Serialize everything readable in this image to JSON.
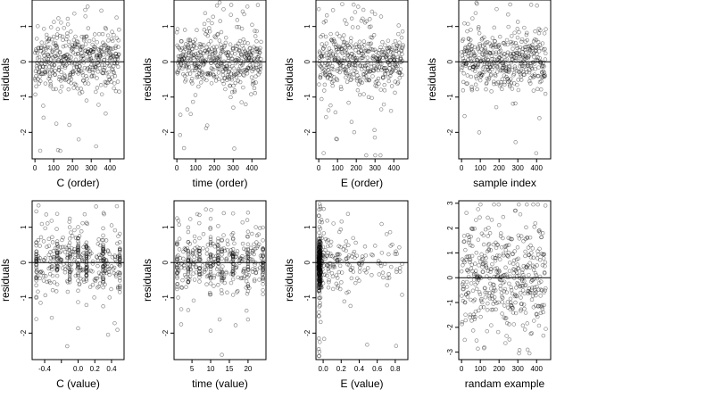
{
  "figure": {
    "point_color": "#000000",
    "point_alpha": 0.45,
    "point_shape": "open-circle",
    "reference_line": 0
  },
  "chart_data": [
    {
      "type": "scatter",
      "ylabel": "residuals",
      "xlabel": "C (order)",
      "xlim": [
        -15,
        475
      ],
      "ylim": [
        -2.75,
        1.75
      ],
      "xticks": [
        0,
        100,
        200,
        300,
        400
      ],
      "xtick_labels": [
        "0",
        "100",
        "200",
        "300",
        "400"
      ],
      "yticks": [
        -2,
        -1,
        0,
        1
      ],
      "ytick_labels": [
        "-2",
        "-1",
        "0",
        "1"
      ],
      "x_kind": "index",
      "y_dist": "resid",
      "seed": 11,
      "n": 450,
      "hline": 0
    },
    {
      "type": "scatter",
      "ylabel": "residuals",
      "xlabel": "time (order)",
      "xlim": [
        -15,
        475
      ],
      "ylim": [
        -2.75,
        1.75
      ],
      "xticks": [
        0,
        100,
        200,
        300,
        400
      ],
      "xtick_labels": [
        "0",
        "100",
        "200",
        "300",
        "400"
      ],
      "yticks": [
        -2,
        -1,
        0,
        1
      ],
      "ytick_labels": [
        "-2",
        "-1",
        "0",
        "1"
      ],
      "x_kind": "index",
      "y_dist": "resid",
      "seed": 23,
      "n": 450,
      "hline": 0
    },
    {
      "type": "scatter",
      "ylabel": "residuals",
      "xlabel": "E (order)",
      "xlim": [
        -15,
        475
      ],
      "ylim": [
        -2.75,
        1.75
      ],
      "xticks": [
        0,
        100,
        200,
        300,
        400
      ],
      "xtick_labels": [
        "0",
        "100",
        "200",
        "300",
        "400"
      ],
      "yticks": [
        -2,
        -1,
        0,
        1
      ],
      "ytick_labels": [
        "-2",
        "-1",
        "0",
        "1"
      ],
      "x_kind": "index",
      "y_dist": "resid",
      "seed": 37,
      "n": 450,
      "hline": 0
    },
    {
      "type": "scatter",
      "ylabel": "residuals",
      "xlabel": "sample index",
      "xlim": [
        -15,
        475
      ],
      "ylim": [
        -2.75,
        1.75
      ],
      "xticks": [
        0,
        100,
        200,
        300,
        400
      ],
      "xtick_labels": [
        "0",
        "100",
        "200",
        "300",
        "400"
      ],
      "yticks": [
        -2,
        -1,
        0,
        1
      ],
      "ytick_labels": [
        "-2",
        "-1",
        "0",
        "1"
      ],
      "x_kind": "index",
      "y_dist": "resid",
      "seed": 41,
      "n": 450,
      "hline": 0
    },
    {
      "type": "scatter",
      "ylabel": "residuals",
      "xlabel": "C (value)",
      "xlim": [
        -0.55,
        0.55
      ],
      "ylim": [
        -2.75,
        1.75
      ],
      "xticks": [
        -0.4,
        -0.2,
        0.0,
        0.2,
        0.4
      ],
      "xtick_labels": [
        "-0.4",
        "",
        "0.0",
        "0.2",
        "0.4"
      ],
      "yticks": [
        -2,
        -1,
        0,
        1
      ],
      "ytick_labels": [
        "-2",
        "-1",
        "0",
        "1"
      ],
      "x_kind": "uniform",
      "x_range": [
        -0.5,
        0.5
      ],
      "stacks": [
        -0.5,
        -0.25,
        -0.1,
        0.0,
        0.1,
        0.3,
        0.5
      ],
      "y_dist": "resid",
      "seed": 53,
      "n": 450,
      "hline": 0
    },
    {
      "type": "scatter",
      "ylabel": "residuals",
      "xlabel": "time (value)",
      "xlim": [
        0.2,
        24.8
      ],
      "ylim": [
        -2.75,
        1.75
      ],
      "xticks": [
        5,
        10,
        15,
        20
      ],
      "xtick_labels": [
        "5",
        "10",
        "15",
        "20"
      ],
      "yticks": [
        -2,
        -1,
        0,
        1
      ],
      "ytick_labels": [
        "-2",
        "-1",
        "0",
        "1"
      ],
      "x_kind": "uniform",
      "x_range": [
        1,
        24
      ],
      "stacks": [
        1,
        4,
        7,
        10,
        12,
        13,
        16,
        20,
        24
      ],
      "y_dist": "resid",
      "seed": 67,
      "n": 450,
      "hline": 0
    },
    {
      "type": "scatter",
      "ylabel": "residuals",
      "xlabel": "E (value)",
      "xlim": [
        -0.08,
        0.94
      ],
      "ylim": [
        -2.75,
        1.75
      ],
      "xticks": [
        0.0,
        0.2,
        0.4,
        0.6,
        0.8
      ],
      "xtick_labels": [
        "0.0",
        "0.2",
        "0.4",
        "0.6",
        "0.8"
      ],
      "yticks": [
        -2,
        -1,
        0,
        1
      ],
      "ytick_labels": [
        "-2",
        "-1",
        "0",
        "1"
      ],
      "x_kind": "skewed",
      "x_range": [
        -0.05,
        0.9
      ],
      "y_dist": "resid",
      "seed": 79,
      "n": 450,
      "hline": 0
    },
    {
      "type": "scatter",
      "ylabel": "",
      "xlabel": "randam example",
      "xlim": [
        -15,
        475
      ],
      "ylim": [
        -3.3,
        3.1
      ],
      "xticks": [
        0,
        100,
        200,
        300,
        400
      ],
      "xtick_labels": [
        "0",
        "100",
        "200",
        "300",
        "400"
      ],
      "yticks": [
        -3,
        -2,
        -1,
        0,
        1,
        2,
        3
      ],
      "ytick_labels": [
        "-3",
        "-2",
        "-1",
        "0",
        "1",
        "2",
        "3"
      ],
      "x_kind": "index",
      "y_dist": "normal",
      "seed": 97,
      "n": 450,
      "hline": 0
    }
  ]
}
